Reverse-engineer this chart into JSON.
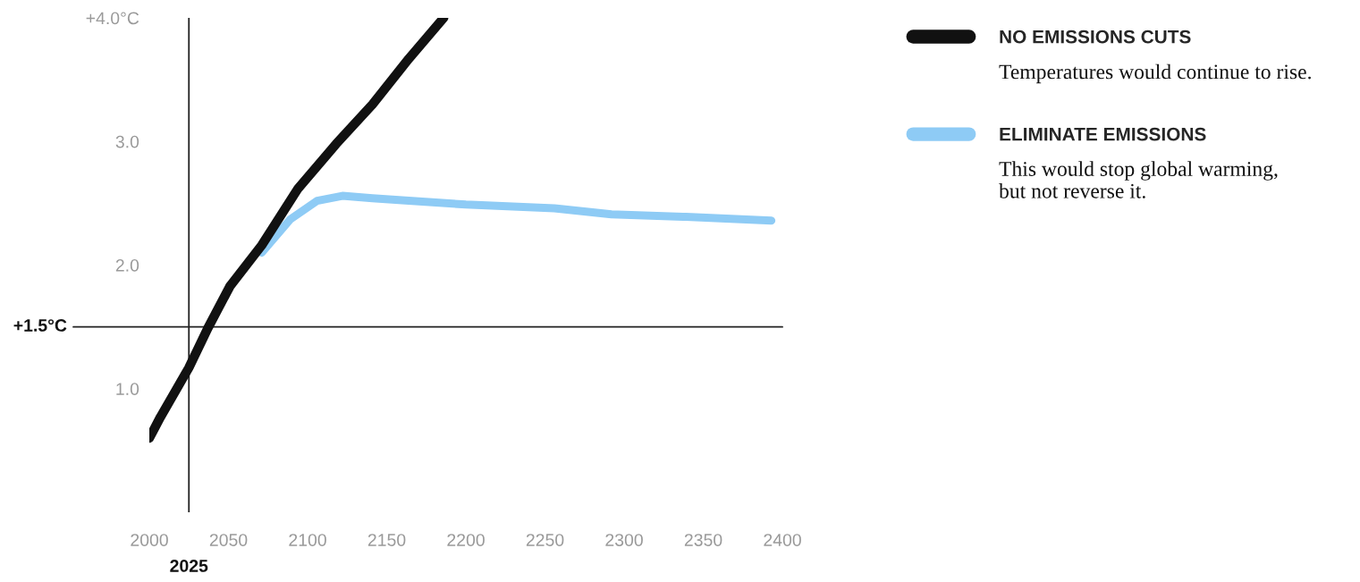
{
  "chart_data": {
    "type": "line",
    "x": [
      2000,
      2007,
      2025,
      2037,
      2051,
      2071,
      2094,
      2118,
      2141,
      2164,
      2186
    ],
    "series": [
      {
        "name": "NO EMISSIONS CUTS",
        "color": "#111111",
        "values": [
          0.6,
          0.77,
          1.17,
          1.49,
          1.83,
          2.16,
          2.62,
          2.98,
          3.3,
          3.67,
          4.0
        ]
      },
      {
        "name": "ELIMINATE EMISSIONS",
        "color": "#8ecbf5",
        "x": [
          2071,
          2089,
          2106,
          2122,
          2141,
          2164,
          2200,
          2256,
          2292,
          2339,
          2393
        ],
        "values": [
          2.1,
          2.37,
          2.52,
          2.56,
          2.54,
          2.52,
          2.49,
          2.46,
          2.41,
          2.39,
          2.36
        ]
      }
    ],
    "xlim": [
      2000,
      2400
    ],
    "xticks": [
      2000,
      2050,
      2100,
      2150,
      2200,
      2250,
      2300,
      2350,
      2400
    ],
    "ylim": [
      0,
      4.0
    ],
    "yticks": [
      {
        "value": 4.0,
        "label": "+4.0°C"
      },
      {
        "value": 3,
        "label": "3.0"
      },
      {
        "value": 2,
        "label": "2.0"
      },
      {
        "value": 1,
        "label": "1.0"
      }
    ],
    "ref_lines": [
      {
        "axis": "x",
        "value": 2025,
        "label": "2025",
        "color": "#222222"
      },
      {
        "axis": "y",
        "value": 1.5,
        "label": "+1.5°C",
        "color": "#222222"
      }
    ],
    "annotations": [
      "Temperatures would continue to rise.",
      "This would stop global warming,\nbut not reverse it."
    ],
    "legend": "right",
    "grid": false,
    "marker": "none",
    "line_style": "solid"
  }
}
